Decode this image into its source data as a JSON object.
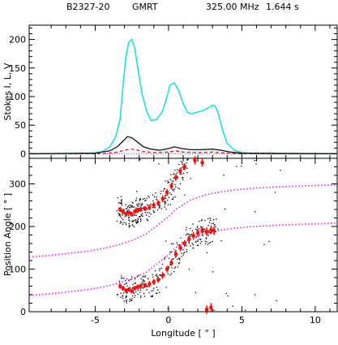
{
  "header": {
    "pulsar": "B2327-20",
    "telescope": "GMRT",
    "frequency": "325.00 MHz",
    "period": "1.644 s"
  },
  "colors": {
    "stokes_i": "#22e0e0",
    "linear": "#ee1111",
    "circular": "#111111",
    "pa_points": "#ee1111",
    "rvm_fit": "#dd22dd",
    "single_pulse_pa": "#000000",
    "axes": "#000000"
  },
  "chart_data": [
    {
      "type": "line",
      "panel": "profile",
      "ylabel": "Stokes I, L, V",
      "xlim": [
        -9.5,
        11.5
      ],
      "ylim": [
        -8,
        225
      ],
      "x_ticks": [
        "-5",
        "0",
        "5",
        "10"
      ],
      "y_ticks": [
        "0",
        "50",
        "100",
        "150",
        "200"
      ],
      "grid": false,
      "series": [
        {
          "key": "I",
          "style": "solid",
          "x": [
            -9.5,
            -6,
            -5,
            -4.5,
            -4,
            -3.6,
            -3.3,
            -3.1,
            -2.9,
            -2.7,
            -2.5,
            -2.3,
            -2.1,
            -1.8,
            -1.5,
            -1.2,
            -0.8,
            -0.4,
            -0.1,
            0.1,
            0.4,
            0.7,
            1.0,
            1.3,
            1.6,
            2.0,
            2.4,
            2.7,
            3.0,
            3.2,
            3.4,
            3.7,
            4.0,
            4.5,
            5,
            6,
            11.5
          ],
          "values": [
            0,
            0,
            1,
            4,
            12,
            30,
            60,
            120,
            170,
            195,
            200,
            185,
            150,
            105,
            75,
            58,
            60,
            75,
            100,
            120,
            124,
            110,
            88,
            72,
            70,
            73,
            76,
            80,
            85,
            83,
            70,
            40,
            18,
            6,
            2,
            0,
            0
          ]
        },
        {
          "key": "L",
          "style": "dashed",
          "x": [
            -9.5,
            -4.5,
            -4,
            -3.5,
            -3.0,
            -2.6,
            -2.2,
            -1.8,
            -1.0,
            0.0,
            0.5,
            1.0,
            2.0,
            3.0,
            3.5,
            4.5,
            11.5
          ],
          "values": [
            0,
            0,
            1,
            3,
            6,
            8,
            7,
            4,
            2,
            3,
            5,
            3,
            2,
            3,
            2,
            0,
            0
          ]
        },
        {
          "key": "V",
          "style": "solid",
          "x": [
            -9.5,
            -5,
            -4,
            -3.5,
            -3.1,
            -2.8,
            -2.5,
            -2.1,
            -1.7,
            -1.2,
            -0.6,
            0.0,
            0.4,
            0.9,
            1.5,
            2.2,
            3.0,
            3.6,
            4.2,
            5,
            11.5
          ],
          "values": [
            0,
            1,
            5,
            12,
            22,
            30,
            28,
            20,
            12,
            8,
            6,
            9,
            12,
            9,
            7,
            7,
            8,
            6,
            3,
            1,
            0
          ]
        }
      ]
    },
    {
      "type": "scatter",
      "panel": "position_angle",
      "ylabel": "Position Angle [ ° ]",
      "xlabel": "Longitude [ ° ]",
      "xlim": [
        -9.5,
        11.5
      ],
      "ylim": [
        0,
        360
      ],
      "x_ticks": [
        "-5",
        "0",
        "5",
        "10"
      ],
      "y_ticks": [
        "0",
        "100",
        "200",
        "300"
      ],
      "grid": false,
      "series": [
        {
          "key": "pa_lower",
          "x": [
            -3.3,
            -3.1,
            -2.9,
            -2.7,
            -2.5,
            -2.3,
            -2.1,
            -1.9,
            -1.6,
            -1.3,
            -1.0,
            -0.7,
            -0.4,
            -0.1,
            0.2,
            0.5,
            0.8,
            1.1,
            1.4,
            1.7,
            2.0,
            2.3,
            2.6,
            2.9,
            3.1
          ],
          "values": [
            60,
            55,
            50,
            52,
            48,
            55,
            58,
            60,
            62,
            65,
            70,
            75,
            85,
            100,
            115,
            135,
            150,
            160,
            170,
            178,
            185,
            190,
            188,
            192,
            190
          ],
          "errors": [
            6,
            6,
            5,
            5,
            5,
            5,
            6,
            6,
            6,
            7,
            7,
            7,
            8,
            8,
            8,
            8,
            8,
            8,
            9,
            9,
            9,
            10,
            10,
            10,
            10
          ]
        },
        {
          "key": "pa_upper",
          "x": [
            -3.3,
            -3.1,
            -2.9,
            -2.7,
            -2.5,
            -2.3,
            -2.1,
            -1.9,
            -1.6,
            -1.3,
            -1.0,
            -0.7,
            -0.4,
            -0.1,
            0.2,
            0.5,
            0.8,
            1.1
          ],
          "values": [
            240,
            235,
            230,
            232,
            228,
            235,
            238,
            240,
            242,
            245,
            250,
            255,
            265,
            280,
            295,
            315,
            330,
            340
          ],
          "errors": [
            6,
            6,
            5,
            5,
            5,
            5,
            6,
            6,
            6,
            7,
            7,
            7,
            8,
            8,
            8,
            8,
            8,
            8
          ]
        },
        {
          "key": "pa_orphan",
          "x": [
            1.8,
            2.3,
            2.6,
            2.9
          ],
          "values": [
            355,
            350,
            5,
            10
          ],
          "errors": [
            10,
            10,
            10,
            10
          ]
        },
        {
          "key": "rvm_lower",
          "style": "dotted",
          "x": [
            -9.5,
            -7.5,
            -5.5,
            -4.5,
            -3.5,
            -2.5,
            -1.5,
            -0.5,
            0.0,
            0.5,
            1.5,
            2.5,
            3.5,
            4.5,
            5.5,
            7.5,
            11.5
          ],
          "values": [
            38,
            44,
            52,
            58,
            66,
            77,
            93,
            120,
            133,
            150,
            172,
            184,
            191,
            196,
            199,
            203,
            208
          ]
        },
        {
          "key": "rvm_upper",
          "style": "dotted",
          "x": [
            -9.5,
            -7.5,
            -5.5,
            -4.5,
            -3.5,
            -2.5,
            -1.5,
            -0.5,
            0.0,
            0.5,
            1.5,
            2.5,
            3.5,
            4.5,
            5.5,
            7.5,
            11.5
          ],
          "values": [
            128,
            134,
            142,
            148,
            156,
            167,
            183,
            210,
            223,
            240,
            262,
            274,
            281,
            286,
            289,
            293,
            298
          ]
        }
      ]
    }
  ]
}
